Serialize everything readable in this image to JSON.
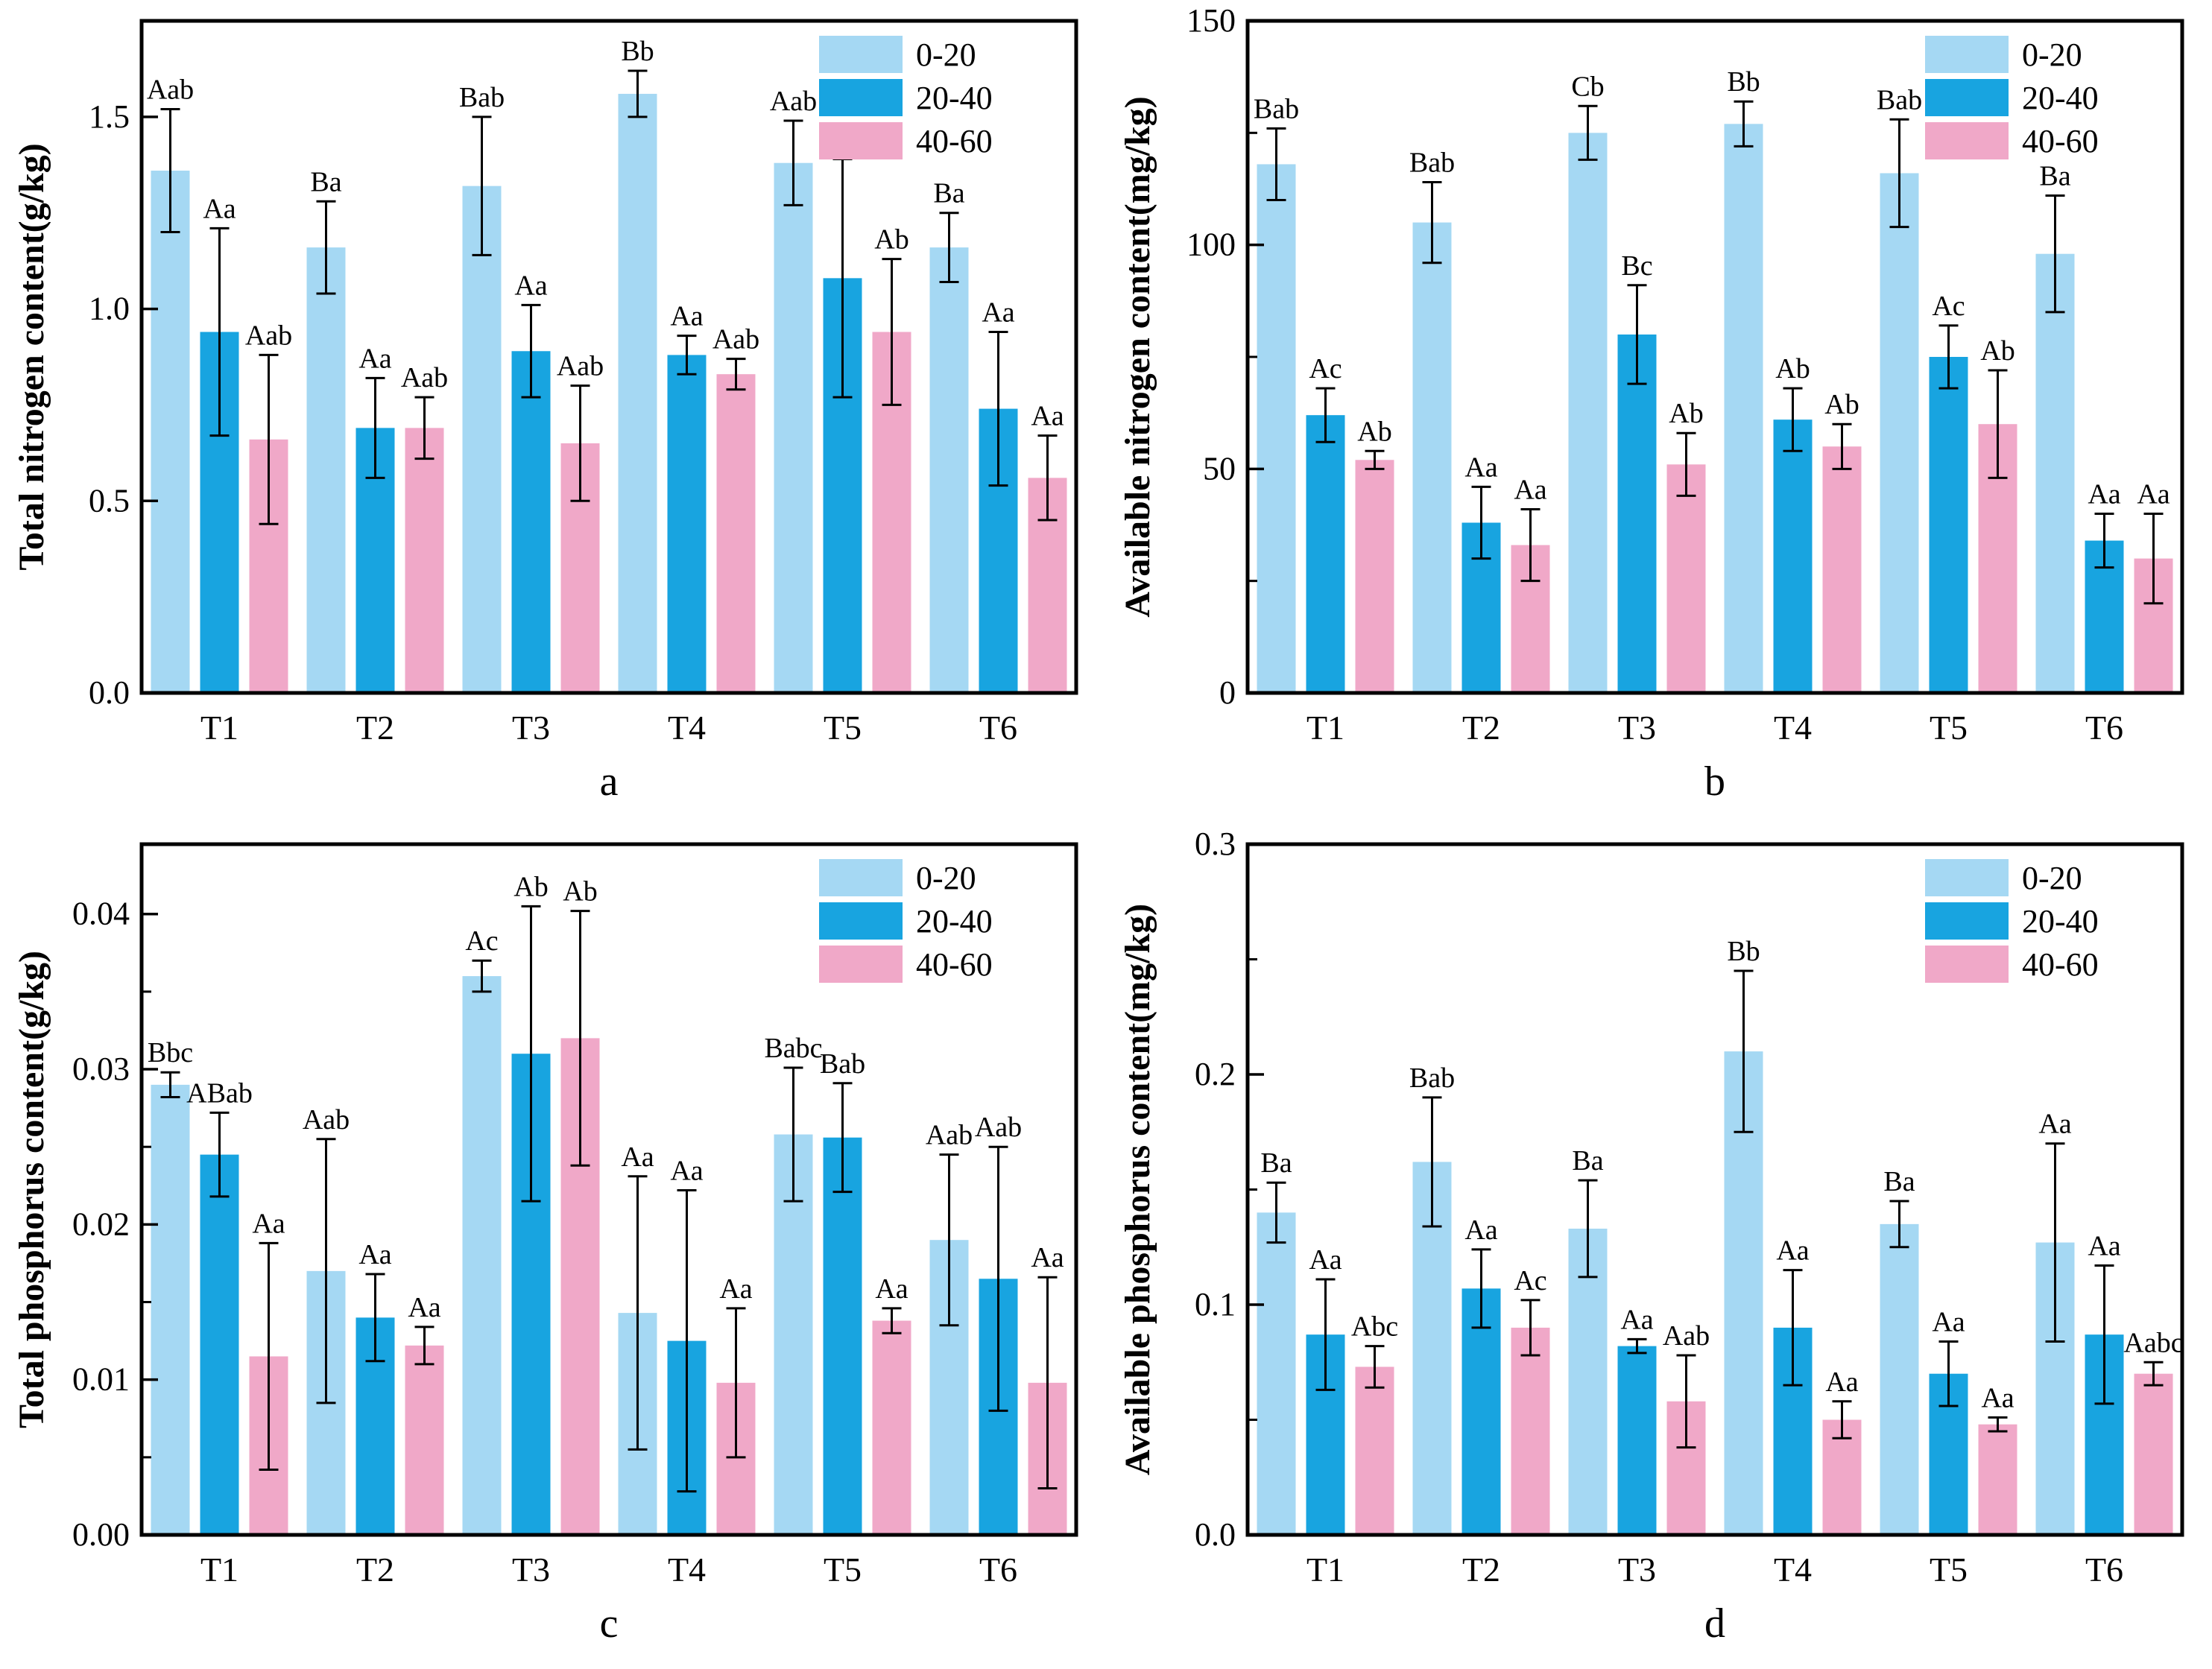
{
  "page": {
    "background": "#ffffff"
  },
  "legend": {
    "items": [
      {
        "label": "0-20",
        "color": "#A5D8F3"
      },
      {
        "label": "20-40",
        "color": "#18A4E0"
      },
      {
        "label": "40-60",
        "color": "#F0A8C8"
      }
    ]
  },
  "chart_data": [
    {
      "id": "a",
      "type": "bar",
      "panel_label": "a",
      "ylabel": "Total nitrogen content(g/kg)",
      "xlabel": "",
      "ymax": 1.75,
      "y_major": [
        0,
        0.5,
        1.0,
        1.5
      ],
      "y_tick_labels": [
        "0.0",
        "0.5",
        "1.0",
        "1.5"
      ],
      "y_minor": [],
      "grid": false,
      "legend_position": "top-right",
      "categories": [
        "T1",
        "T2",
        "T3",
        "T4",
        "T5",
        "T6"
      ],
      "series": [
        {
          "name": "0-20",
          "color": "#A5D8F3",
          "values": [
            1.36,
            1.16,
            1.32,
            1.56,
            1.38,
            1.16
          ],
          "errors": [
            0.16,
            0.12,
            0.18,
            0.06,
            0.11,
            0.09
          ],
          "sig_labels": [
            "Aab",
            "Ba",
            "Bab",
            "Bb",
            "Aab",
            "Ba"
          ]
        },
        {
          "name": "20-40",
          "color": "#18A4E0",
          "values": [
            0.94,
            0.69,
            0.89,
            0.88,
            1.08,
            0.74
          ],
          "errors": [
            0.27,
            0.13,
            0.12,
            0.05,
            0.31,
            0.2
          ],
          "sig_labels": [
            "Aa",
            "Aa",
            "Aa",
            "Aa",
            "Aa",
            "Aa"
          ]
        },
        {
          "name": "40-60",
          "color": "#F0A8C8",
          "values": [
            0.66,
            0.69,
            0.65,
            0.83,
            0.94,
            0.56
          ],
          "errors": [
            0.22,
            0.08,
            0.15,
            0.04,
            0.19,
            0.11
          ],
          "sig_labels": [
            "Aab",
            "Aab",
            "Aab",
            "Aab",
            "Ab",
            "Aa"
          ]
        }
      ]
    },
    {
      "id": "b",
      "type": "bar",
      "panel_label": "b",
      "ylabel": "Available nitrogen content(mg/kg)",
      "xlabel": "",
      "ymax": 150,
      "y_major": [
        0,
        50,
        100,
        150
      ],
      "y_tick_labels": [
        "0",
        "50",
        "100",
        "150"
      ],
      "y_minor": [
        25,
        75,
        125
      ],
      "grid": false,
      "legend_position": "top-right",
      "categories": [
        "T1",
        "T2",
        "T3",
        "T4",
        "T5",
        "T6"
      ],
      "series": [
        {
          "name": "0-20",
          "color": "#A5D8F3",
          "values": [
            118,
            105,
            125,
            127,
            116,
            98
          ],
          "errors": [
            8,
            9,
            6,
            5,
            12,
            13
          ],
          "sig_labels": [
            "Bab",
            "Bab",
            "Cb",
            "Bb",
            "Bab",
            "Ba"
          ]
        },
        {
          "name": "20-40",
          "color": "#18A4E0",
          "values": [
            62,
            38,
            80,
            61,
            75,
            34
          ],
          "errors": [
            6,
            8,
            11,
            7,
            7,
            6
          ],
          "sig_labels": [
            "Ac",
            "Aa",
            "Bc",
            "Ab",
            "Ac",
            "Aa"
          ]
        },
        {
          "name": "40-60",
          "color": "#F0A8C8",
          "values": [
            52,
            33,
            51,
            55,
            60,
            30
          ],
          "errors": [
            2,
            8,
            7,
            5,
            12,
            10
          ],
          "sig_labels": [
            "Ab",
            "Aa",
            "Ab",
            "Ab",
            "Ab",
            "Aa"
          ]
        }
      ]
    },
    {
      "id": "c",
      "type": "bar",
      "panel_label": "c",
      "ylabel": "Total phosphorus content(g/kg)",
      "xlabel": "",
      "ymax": 0.0445,
      "y_major": [
        0,
        0.01,
        0.02,
        0.03,
        0.04
      ],
      "y_tick_labels": [
        "0.00",
        "0.01",
        "0.02",
        "0.03",
        "0.04"
      ],
      "y_minor": [
        0.005,
        0.015,
        0.025,
        0.035
      ],
      "grid": false,
      "legend_position": "top-right",
      "categories": [
        "T1",
        "T2",
        "T3",
        "T4",
        "T5",
        "T6"
      ],
      "series": [
        {
          "name": "0-20",
          "color": "#A5D8F3",
          "values": [
            0.029,
            0.017,
            0.036,
            0.0143,
            0.0258,
            0.019
          ],
          "errors": [
            0.0008,
            0.0085,
            0.001,
            0.0088,
            0.0043,
            0.0055
          ],
          "sig_labels": [
            "Bbc",
            "Aab",
            "Ac",
            "Aa",
            "Babc",
            "Aab"
          ]
        },
        {
          "name": "20-40",
          "color": "#18A4E0",
          "values": [
            0.0245,
            0.014,
            0.031,
            0.0125,
            0.0256,
            0.0165
          ],
          "errors": [
            0.0027,
            0.0028,
            0.0095,
            0.0097,
            0.0035,
            0.0085
          ],
          "sig_labels": [
            "ABab",
            "Aa",
            "Ab",
            "Aa",
            "Bab",
            "Aab"
          ]
        },
        {
          "name": "40-60",
          "color": "#F0A8C8",
          "values": [
            0.0115,
            0.0122,
            0.032,
            0.0098,
            0.0138,
            0.0098
          ],
          "errors": [
            0.0073,
            0.0012,
            0.0082,
            0.0048,
            0.0008,
            0.0068
          ],
          "sig_labels": [
            "Aa",
            "Aa",
            "Ab",
            "Aa",
            "Aa",
            "Aa"
          ]
        }
      ]
    },
    {
      "id": "d",
      "type": "bar",
      "panel_label": "d",
      "ylabel": "Available phosphorus content(mg/kg)",
      "xlabel": "",
      "ymax": 0.3,
      "y_major": [
        0,
        0.1,
        0.2,
        0.3
      ],
      "y_tick_labels": [
        "0.0",
        "0.1",
        "0.2",
        "0.3"
      ],
      "y_minor": [
        0.05,
        0.15,
        0.25
      ],
      "grid": false,
      "legend_position": "top-right",
      "categories": [
        "T1",
        "T2",
        "T3",
        "T4",
        "T5",
        "T6"
      ],
      "series": [
        {
          "name": "0-20",
          "color": "#A5D8F3",
          "values": [
            0.14,
            0.162,
            0.133,
            0.21,
            0.135,
            0.127
          ],
          "errors": [
            0.013,
            0.028,
            0.021,
            0.035,
            0.01,
            0.043
          ],
          "sig_labels": [
            "Ba",
            "Bab",
            "Ba",
            "Bb",
            "Ba",
            "Aa"
          ]
        },
        {
          "name": "20-40",
          "color": "#18A4E0",
          "values": [
            0.087,
            0.107,
            0.082,
            0.09,
            0.07,
            0.087
          ],
          "errors": [
            0.024,
            0.017,
            0.003,
            0.025,
            0.014,
            0.03
          ],
          "sig_labels": [
            "Aa",
            "Aa",
            "Aa",
            "Aa",
            "Aa",
            "Aa"
          ]
        },
        {
          "name": "40-60",
          "color": "#F0A8C8",
          "values": [
            0.073,
            0.09,
            0.058,
            0.05,
            0.048,
            0.07
          ],
          "errors": [
            0.009,
            0.012,
            0.02,
            0.008,
            0.003,
            0.005
          ],
          "sig_labels": [
            "Abc",
            "Ac",
            "Aab",
            "Aa",
            "Aa",
            "Aabc"
          ]
        }
      ]
    }
  ]
}
